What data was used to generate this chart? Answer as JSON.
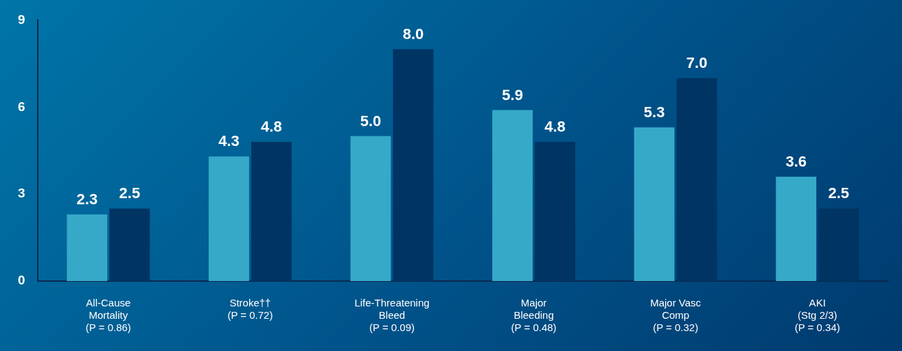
{
  "chart_data": {
    "type": "bar",
    "categories": [
      "All-Cause\nMortality\n(P = 0.86)",
      "Stroke††\n(P = 0.72)",
      "Life-Threatening\nBleed\n(P = 0.09)",
      "Major\nBleeding\n(P = 0.48)",
      "Major Vasc\nComp\n(P = 0.32)",
      "AKI\n(Stg 2/3)\n(P = 0.34)"
    ],
    "series": [
      {
        "color": "#36a9c9",
        "values": [
          2.3,
          4.3,
          5.0,
          5.9,
          5.3,
          3.6
        ],
        "value_labels": [
          "2.3",
          "4.3",
          "5.0",
          "5.9",
          "5.3",
          "3.6"
        ]
      },
      {
        "color": "#003463",
        "values": [
          2.5,
          4.8,
          8.0,
          4.8,
          7.0,
          2.5
        ],
        "value_labels": [
          "2.5",
          "4.8",
          "8.0",
          "4.8",
          "7.0",
          "2.5"
        ]
      }
    ],
    "ylim": [
      0,
      9
    ],
    "yticks": [
      0,
      3,
      6,
      9
    ],
    "grid": false,
    "legend": false
  }
}
